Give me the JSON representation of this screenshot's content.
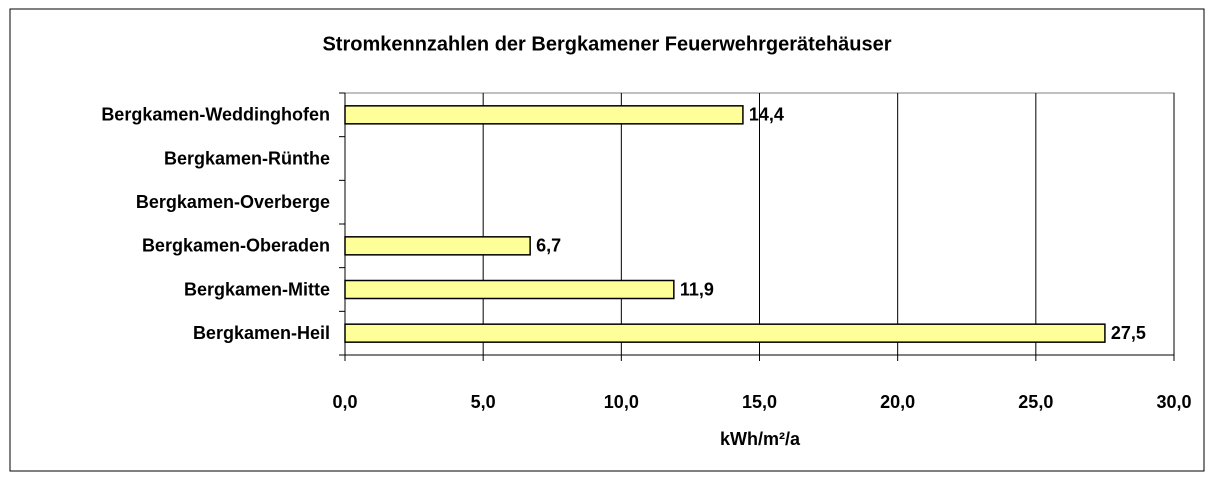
{
  "chart_data": {
    "type": "bar",
    "orientation": "horizontal",
    "title": "Stromkennzahlen der Bergkamener Feuerwehrgerätehäuser",
    "x_label": "kWh/m²/a",
    "categories": [
      "Bergkamen-Weddinghofen",
      "Bergkamen-Rünthe",
      "Bergkamen-Overberge",
      "Bergkamen-Oberaden",
      "Bergkamen-Mitte",
      "Bergkamen-Heil"
    ],
    "values": [
      14.4,
      null,
      null,
      6.7,
      11.9,
      27.5
    ],
    "value_labels": [
      "14,4",
      null,
      null,
      "6,7",
      "11,9",
      "27,5"
    ],
    "color": "#ffff99",
    "xlim": [
      0,
      30
    ],
    "xticks": [
      {
        "value": 0,
        "label": "0,0"
      },
      {
        "value": 5,
        "label": "5,0"
      },
      {
        "value": 10,
        "label": "10,0"
      },
      {
        "value": 15,
        "label": "15,0"
      },
      {
        "value": 20,
        "label": "20,0"
      },
      {
        "value": 25,
        "label": "25,0"
      },
      {
        "value": 30,
        "label": "30,0"
      }
    ],
    "grid": true
  }
}
